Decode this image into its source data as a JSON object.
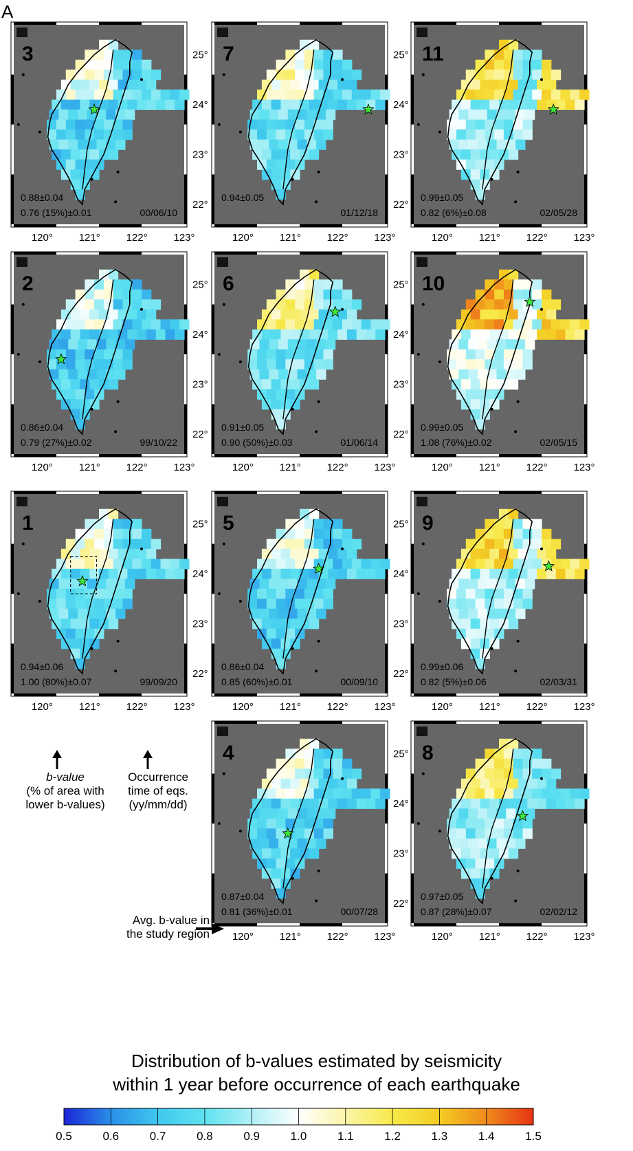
{
  "figure_label": "A",
  "lon_labels": [
    "120°",
    "121°",
    "122°",
    "123°"
  ],
  "lat_labels": [
    "25°",
    "24°",
    "23°",
    "22°"
  ],
  "panels": [
    {
      "id": "3",
      "avg": "0.88±0.04",
      "area": "0.76 (15%)±0.01",
      "date": "00/06/10",
      "star": [
        121.1,
        23.9
      ]
    },
    {
      "id": "7",
      "avg": "0.94±0.05",
      "area": "",
      "date": "01/12/18",
      "star": [
        122.65,
        23.9
      ]
    },
    {
      "id": "11",
      "avg": "0.99±0.05",
      "area": "0.82 (6%)±0.08",
      "date": "02/05/28",
      "star": [
        122.35,
        23.9
      ]
    },
    {
      "id": "2",
      "avg": "0.86±0.04",
      "area": "0.79 (27%)±0.02",
      "date": "99/10/22",
      "star": [
        120.4,
        23.5
      ]
    },
    {
      "id": "6",
      "avg": "0.91±0.05",
      "area": "0.90 (50%)±0.03",
      "date": "01/06/14",
      "star": [
        121.95,
        24.45
      ]
    },
    {
      "id": "10",
      "avg": "0.99±0.05",
      "area": "1.08 (76%)±0.02",
      "date": "02/05/15",
      "star": [
        121.85,
        24.65
      ]
    },
    {
      "id": "1",
      "avg": "0.94±0.06",
      "area": "1.00 (80%)±0.07",
      "date": "99/09/20",
      "star": [
        120.85,
        23.85
      ]
    },
    {
      "id": "5",
      "avg": "0.86±0.04",
      "area": "0.85 (60%)±0.01",
      "date": "00/09/10",
      "star": [
        121.6,
        24.1
      ]
    },
    {
      "id": "9",
      "avg": "0.99±0.06",
      "area": "0.82 (5%)±0.06",
      "date": "02/03/31",
      "star": [
        122.25,
        24.15
      ]
    },
    {
      "id": "4",
      "avg": "0.87±0.04",
      "area": "0.81 (36%)±0.01",
      "date": "00/07/28",
      "star": [
        120.95,
        23.4
      ]
    },
    {
      "id": "8",
      "avg": "0.97±0.05",
      "area": "0.87 (28%)±0.07",
      "date": "02/02/12",
      "star": [
        121.7,
        23.75
      ]
    }
  ],
  "annotations": {
    "bvalue_label": "b-value",
    "bvalue_sub1": "(% of area with",
    "bvalue_sub2": "lower b-values)",
    "time_label1": "Occurrence",
    "time_label2": "time of eqs.",
    "time_label3": "(yy/mm/dd)",
    "avg_label1": "Avg. b-value in",
    "avg_label2": "the study region"
  },
  "caption": {
    "line1": "Distribution of  b-values estimated by seismicity",
    "line2": "within 1 year before occurrence of each earthquake"
  },
  "colorbar": {
    "min": 0.5,
    "max": 1.5,
    "ticks": [
      "0.5",
      "0.6",
      "0.7",
      "0.8",
      "0.9",
      "1.0",
      "1.1",
      "1.2",
      "1.3",
      "1.4",
      "1.5"
    ],
    "colors": [
      "#1b24d6",
      "#2a8fe8",
      "#3fc8ee",
      "#5fe2f0",
      "#b0f0f6",
      "#ffffff",
      "#fbf5a8",
      "#f7e94a",
      "#f4cc22",
      "#ef8a1c",
      "#e63312"
    ]
  }
}
